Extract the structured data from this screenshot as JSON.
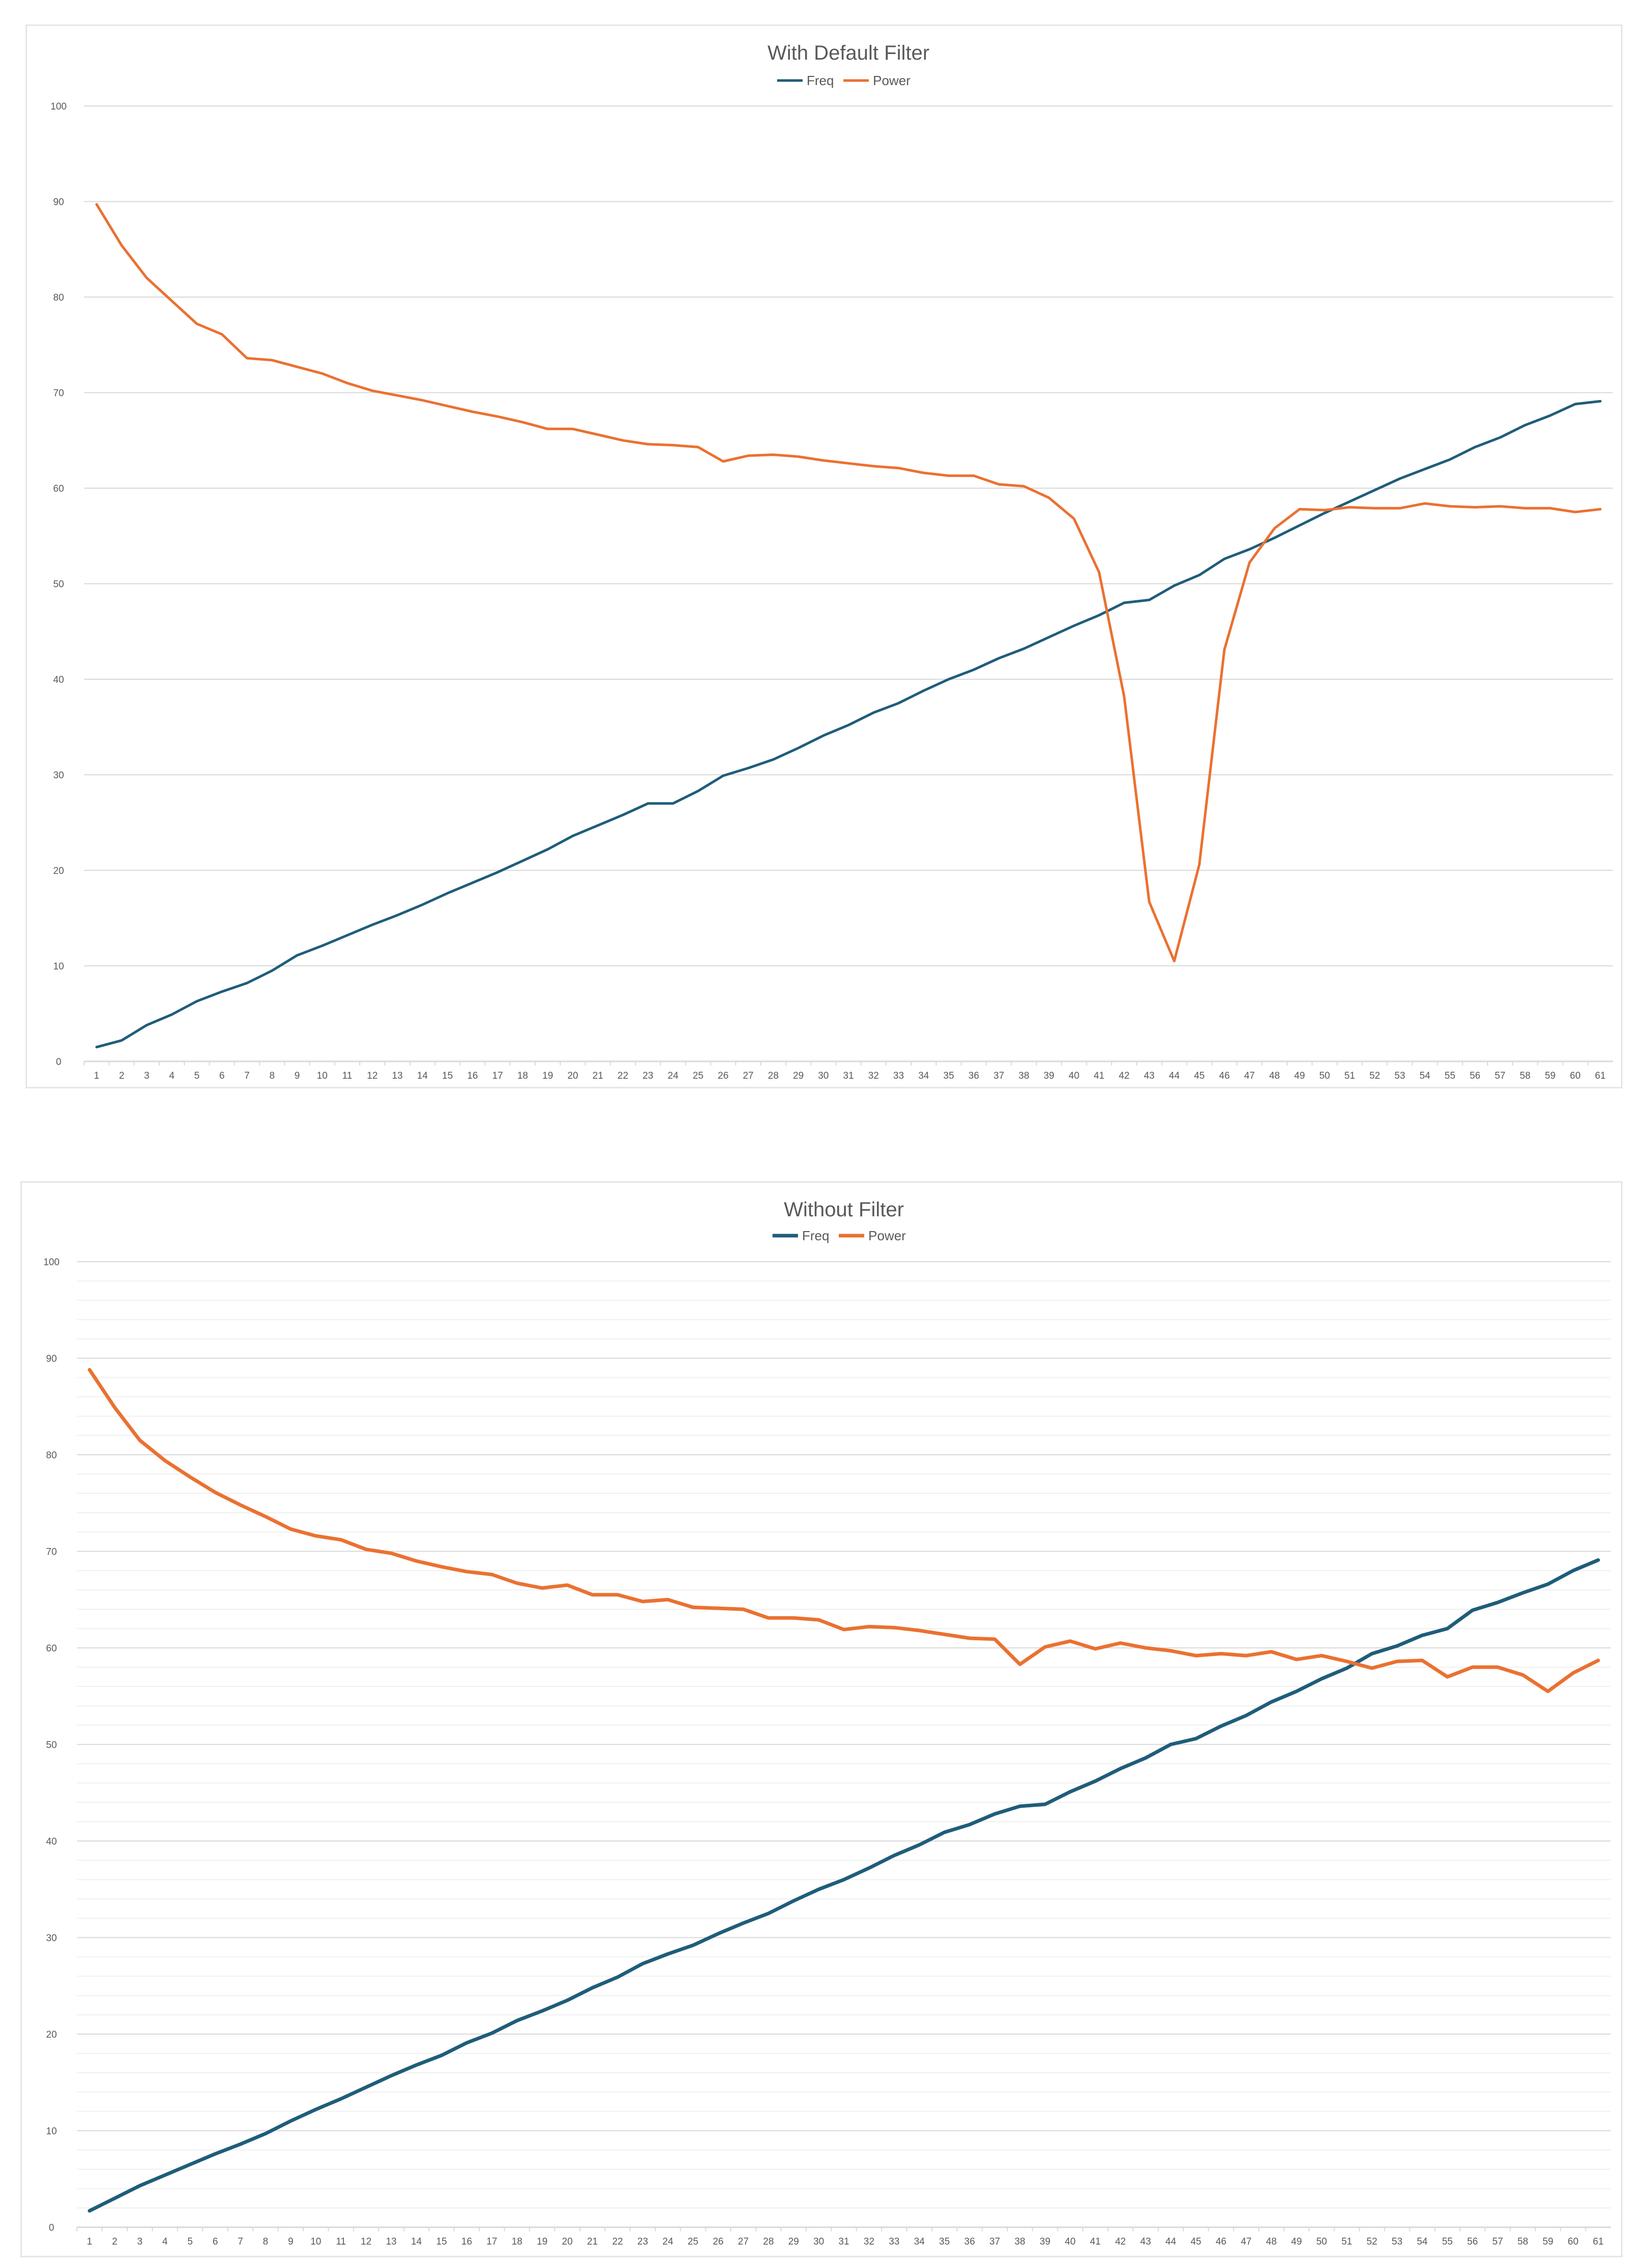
{
  "colors": {
    "freq": "#1f5d7a",
    "power": "#ea7131",
    "grid": "#d9d9d9",
    "minor_grid": "#f0f0f0",
    "text": "#595959"
  },
  "chart_data": [
    {
      "type": "line",
      "title": "With Default Filter",
      "xlabel": "",
      "ylabel": "",
      "legend": "top-center",
      "grid": true,
      "ylim": [
        0,
        100
      ],
      "yticks": [
        0,
        10,
        20,
        30,
        40,
        50,
        60,
        70,
        80,
        90,
        100
      ],
      "x": [
        1,
        2,
        3,
        4,
        5,
        6,
        7,
        8,
        9,
        10,
        11,
        12,
        13,
        14,
        15,
        16,
        17,
        18,
        19,
        20,
        21,
        22,
        23,
        24,
        25,
        26,
        27,
        28,
        29,
        30,
        31,
        32,
        33,
        34,
        35,
        36,
        37,
        38,
        39,
        40,
        41,
        42,
        43,
        44,
        45,
        46,
        47,
        48,
        49,
        50,
        51,
        52,
        53,
        54,
        55,
        56,
        57,
        58,
        59,
        60,
        61
      ],
      "series": [
        {
          "name": "Freq",
          "values": [
            1.5,
            2.2,
            3.8,
            4.9,
            6.3,
            7.3,
            8.2,
            9.5,
            11.1,
            12.1,
            13.2,
            14.3,
            15.3,
            16.4,
            17.6,
            18.7,
            19.8,
            21.0,
            22.2,
            23.6,
            24.7,
            25.8,
            27.0,
            27.0,
            28.3,
            29.9,
            30.7,
            31.6,
            32.8,
            34.1,
            35.2,
            36.5,
            37.5,
            38.8,
            40.0,
            41.0,
            42.2,
            43.2,
            44.4,
            45.6,
            46.7,
            48.0,
            48.3,
            49.8,
            50.9,
            52.6,
            53.6,
            54.8,
            56.1,
            57.4,
            58.6,
            59.8,
            61.0,
            62.0,
            63.0,
            64.3,
            65.3,
            66.6,
            67.6,
            68.8,
            69.1
          ]
        },
        {
          "name": "Power",
          "values": [
            89.7,
            85.4,
            82.0,
            79.6,
            77.2,
            76.1,
            73.6,
            73.4,
            72.7,
            72.0,
            71.0,
            70.2,
            69.7,
            69.2,
            68.6,
            68.0,
            67.5,
            66.9,
            66.2,
            66.2,
            65.6,
            65.0,
            64.6,
            64.5,
            64.3,
            62.8,
            63.4,
            63.5,
            63.3,
            62.9,
            62.6,
            62.3,
            62.1,
            61.6,
            61.3,
            61.3,
            60.4,
            60.2,
            59.0,
            56.8,
            51.2,
            38.2,
            16.7,
            10.5,
            20.6,
            43.1,
            52.2,
            55.8,
            57.8,
            57.7,
            58.0,
            57.9,
            57.9,
            58.4,
            58.1,
            58.0,
            58.1,
            57.9,
            57.9,
            57.5,
            57.8
          ]
        }
      ]
    },
    {
      "type": "line",
      "title": "Without Filter",
      "xlabel": "",
      "ylabel": "",
      "legend": "top-center",
      "grid": true,
      "ylim": [
        0,
        100
      ],
      "yticks": [
        0,
        10,
        20,
        30,
        40,
        50,
        60,
        70,
        80,
        90,
        100
      ],
      "x": [
        1,
        2,
        3,
        4,
        5,
        6,
        7,
        8,
        9,
        10,
        11,
        12,
        13,
        14,
        15,
        16,
        17,
        18,
        19,
        20,
        21,
        22,
        23,
        24,
        25,
        26,
        27,
        28,
        29,
        30,
        31,
        32,
        33,
        34,
        35,
        36,
        37,
        38,
        39,
        40,
        41,
        42,
        43,
        44,
        45,
        46,
        47,
        48,
        49,
        50,
        51,
        52,
        53,
        54,
        55,
        56,
        57,
        58,
        59,
        60,
        61
      ],
      "series": [
        {
          "name": "Freq",
          "values": [
            1.7,
            3.0,
            4.3,
            5.4,
            6.5,
            7.6,
            8.6,
            9.7,
            11.0,
            12.2,
            13.3,
            14.5,
            15.7,
            16.8,
            17.8,
            19.1,
            20.1,
            21.4,
            22.4,
            23.5,
            24.8,
            25.9,
            27.3,
            28.3,
            29.2,
            30.4,
            31.5,
            32.5,
            33.8,
            35.0,
            36.0,
            37.2,
            38.5,
            39.6,
            40.9,
            41.7,
            42.8,
            43.6,
            43.8,
            45.1,
            46.2,
            47.5,
            48.6,
            50.0,
            50.6,
            51.9,
            53.0,
            54.4,
            55.5,
            56.8,
            57.9,
            59.4,
            60.2,
            61.3,
            62.0,
            63.9,
            64.7,
            65.7,
            66.6,
            68.0,
            69.1
          ]
        },
        {
          "name": "Power",
          "values": [
            88.8,
            84.9,
            81.5,
            79.4,
            77.7,
            76.1,
            74.8,
            73.6,
            72.3,
            71.6,
            71.2,
            70.2,
            69.8,
            69.0,
            68.4,
            67.9,
            67.6,
            66.7,
            66.2,
            66.5,
            65.5,
            65.5,
            64.8,
            65.0,
            64.2,
            64.1,
            64.0,
            63.1,
            63.1,
            62.9,
            61.9,
            62.2,
            62.1,
            61.8,
            61.4,
            61.0,
            60.9,
            58.3,
            60.1,
            60.7,
            59.9,
            60.5,
            60.0,
            59.7,
            59.2,
            59.4,
            59.2,
            59.6,
            58.8,
            59.2,
            58.6,
            57.9,
            58.6,
            58.7,
            57.0,
            58.0,
            58.0,
            57.2,
            55.5,
            57.4,
            58.7
          ]
        }
      ]
    }
  ]
}
